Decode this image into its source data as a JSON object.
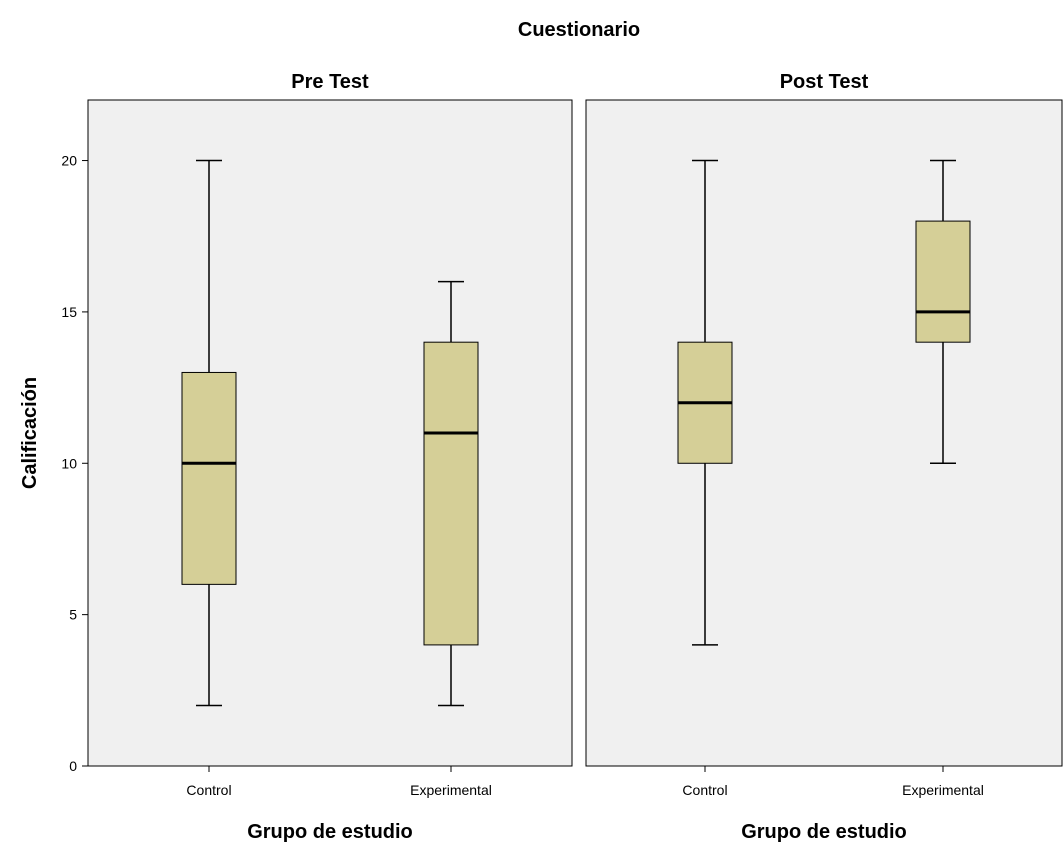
{
  "chart_data": {
    "type": "boxplot",
    "title": "Cuestionario",
    "ylabel": "Calificación",
    "ylim": [
      0,
      22
    ],
    "yticks": [
      0,
      5,
      10,
      15,
      20
    ],
    "grid": false,
    "colors": {
      "panel_bg": "#f0f0f0",
      "box_fill": "#d5cf97",
      "line": "#000000"
    },
    "panels": [
      {
        "title": "Pre Test",
        "xlabel": "Grupo de estudio",
        "categories": [
          "Control",
          "Experimental"
        ],
        "boxes": [
          {
            "category": "Control",
            "min": 2,
            "q1": 6,
            "median": 10,
            "q3": 13,
            "max": 20
          },
          {
            "category": "Experimental",
            "min": 2,
            "q1": 4,
            "median": 11,
            "q3": 14,
            "max": 16
          }
        ]
      },
      {
        "title": "Post Test",
        "xlabel": "Grupo de estudio",
        "categories": [
          "Control",
          "Experimental"
        ],
        "boxes": [
          {
            "category": "Control",
            "min": 4,
            "q1": 10,
            "median": 12,
            "q3": 14,
            "max": 20
          },
          {
            "category": "Experimental",
            "min": 10,
            "q1": 14,
            "median": 15,
            "q3": 18,
            "max": 20
          }
        ]
      }
    ]
  }
}
